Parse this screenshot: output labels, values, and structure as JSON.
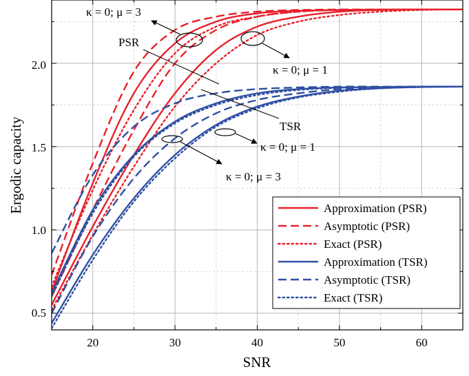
{
  "chart_data": {
    "type": "line",
    "xlabel": "SNR",
    "ylabel": "Ergodic capacity",
    "xlim": [
      15,
      65
    ],
    "ylim": [
      0.4,
      2.38
    ],
    "xticks": [
      20,
      30,
      40,
      50,
      60
    ],
    "yticks": [
      0.5,
      1.0,
      1.5,
      2.0
    ],
    "xtick_labels": [
      "20",
      "30",
      "40",
      "50",
      "60"
    ],
    "ytick_labels": [
      "0.5",
      "1.0",
      "1.5",
      "2.0"
    ],
    "grid": true,
    "legend_position": "bottom-right",
    "colors": {
      "PSR": "#e8202a",
      "TSR": "#2e4fa3"
    },
    "legend": [
      {
        "label": "Approximation (PSR)",
        "color": "#e8202a",
        "dash": "solid"
      },
      {
        "label": "Asymptotic (PSR)",
        "color": "#e8202a",
        "dash": "dash"
      },
      {
        "label": "Exact (PSR)",
        "color": "#e8202a",
        "dash": "dot"
      },
      {
        "label": "Approximation (TSR)",
        "color": "#2e4fa3",
        "dash": "solid"
      },
      {
        "label": "Asymptotic (TSR)",
        "color": "#2e4fa3",
        "dash": "dash"
      },
      {
        "label": "Exact (TSR)",
        "color": "#2e4fa3",
        "dash": "dot"
      }
    ],
    "series": [
      {
        "group": "PSR",
        "style": "solid",
        "color": "#e8202a",
        "x": [
          15,
          20,
          25,
          30,
          35,
          40,
          45,
          50,
          55,
          60,
          65
        ],
        "y": [
          0.63,
          1.28,
          1.82,
          2.12,
          2.25,
          2.3,
          2.315,
          2.32,
          2.322,
          2.323,
          2.323
        ]
      },
      {
        "group": "PSR",
        "style": "solid",
        "color": "#e8202a",
        "x": [
          15,
          20,
          25,
          30,
          35,
          40,
          45,
          50,
          55,
          60,
          65
        ],
        "y": [
          0.55,
          1.02,
          1.45,
          1.82,
          2.08,
          2.22,
          2.28,
          2.31,
          2.32,
          2.323,
          2.323
        ]
      },
      {
        "group": "PSR",
        "style": "dash",
        "color": "#e8202a",
        "x": [
          15,
          20,
          25,
          30,
          35,
          40,
          45,
          50,
          55,
          60,
          65
        ],
        "y": [
          0.73,
          1.4,
          1.95,
          2.2,
          2.28,
          2.31,
          2.32,
          2.323,
          2.323,
          2.323,
          2.323
        ]
      },
      {
        "group": "PSR",
        "style": "dash",
        "color": "#e8202a",
        "x": [
          15,
          20,
          25,
          30,
          35,
          40,
          45,
          50,
          55,
          60,
          65
        ],
        "y": [
          0.6,
          1.12,
          1.6,
          2.0,
          2.2,
          2.28,
          2.31,
          2.32,
          2.323,
          2.323,
          2.323
        ]
      },
      {
        "group": "PSR",
        "style": "dot",
        "color": "#e8202a",
        "x": [
          15,
          20,
          25,
          30,
          35,
          40,
          45,
          50,
          55,
          60,
          65
        ],
        "y": [
          0.66,
          1.24,
          1.72,
          2.06,
          2.22,
          2.28,
          2.31,
          2.32,
          2.322,
          2.323,
          2.323
        ]
      },
      {
        "group": "PSR",
        "style": "dot",
        "color": "#e8202a",
        "x": [
          15,
          20,
          25,
          30,
          35,
          40,
          45,
          50,
          55,
          60,
          65
        ],
        "y": [
          0.52,
          0.97,
          1.38,
          1.74,
          2.0,
          2.17,
          2.25,
          2.29,
          2.31,
          2.32,
          2.323
        ]
      },
      {
        "group": "TSR",
        "style": "solid",
        "color": "#2e4fa3",
        "x": [
          15,
          20,
          25,
          30,
          35,
          40,
          45,
          50,
          55,
          60,
          65
        ],
        "y": [
          0.62,
          1.12,
          1.45,
          1.65,
          1.76,
          1.82,
          1.845,
          1.855,
          1.858,
          1.86,
          1.86
        ]
      },
      {
        "group": "TSR",
        "style": "solid",
        "color": "#2e4fa3",
        "x": [
          15,
          20,
          25,
          30,
          35,
          40,
          45,
          50,
          55,
          60,
          65
        ],
        "y": [
          0.44,
          0.85,
          1.19,
          1.45,
          1.63,
          1.74,
          1.8,
          1.835,
          1.85,
          1.858,
          1.86
        ]
      },
      {
        "group": "TSR",
        "style": "dash",
        "color": "#2e4fa3",
        "x": [
          15,
          20,
          25,
          30,
          35,
          40,
          45,
          50,
          55,
          60,
          65
        ],
        "y": [
          0.86,
          1.33,
          1.62,
          1.76,
          1.82,
          1.845,
          1.855,
          1.86,
          1.86,
          1.86,
          1.86
        ]
      },
      {
        "group": "TSR",
        "style": "dash",
        "color": "#2e4fa3",
        "x": [
          15,
          20,
          25,
          30,
          35,
          40,
          45,
          50,
          55,
          60,
          65
        ],
        "y": [
          0.5,
          0.96,
          1.31,
          1.55,
          1.7,
          1.78,
          1.82,
          1.845,
          1.855,
          1.86,
          1.86
        ]
      },
      {
        "group": "TSR",
        "style": "dot",
        "color": "#2e4fa3",
        "x": [
          15,
          20,
          25,
          30,
          35,
          40,
          45,
          50,
          55,
          60,
          65
        ],
        "y": [
          0.6,
          1.1,
          1.44,
          1.64,
          1.75,
          1.81,
          1.84,
          1.853,
          1.858,
          1.86,
          1.86
        ]
      },
      {
        "group": "TSR",
        "style": "dot",
        "color": "#2e4fa3",
        "x": [
          15,
          20,
          25,
          30,
          35,
          40,
          45,
          50,
          55,
          60,
          65
        ],
        "y": [
          0.41,
          0.82,
          1.17,
          1.43,
          1.62,
          1.73,
          1.795,
          1.83,
          1.85,
          1.857,
          1.86
        ]
      }
    ],
    "annotations": [
      {
        "id": "psr-mu3",
        "text": "κ = 0; μ = 3"
      },
      {
        "id": "psr-label",
        "text": "PSR"
      },
      {
        "id": "psr-mu1",
        "text": "κ = 0; μ = 1"
      },
      {
        "id": "tsr-label",
        "text": "TSR"
      },
      {
        "id": "tsr-mu1",
        "text": "κ = 0; μ = 1"
      },
      {
        "id": "tsr-mu3",
        "text": "κ = 0; μ = 3"
      }
    ]
  }
}
